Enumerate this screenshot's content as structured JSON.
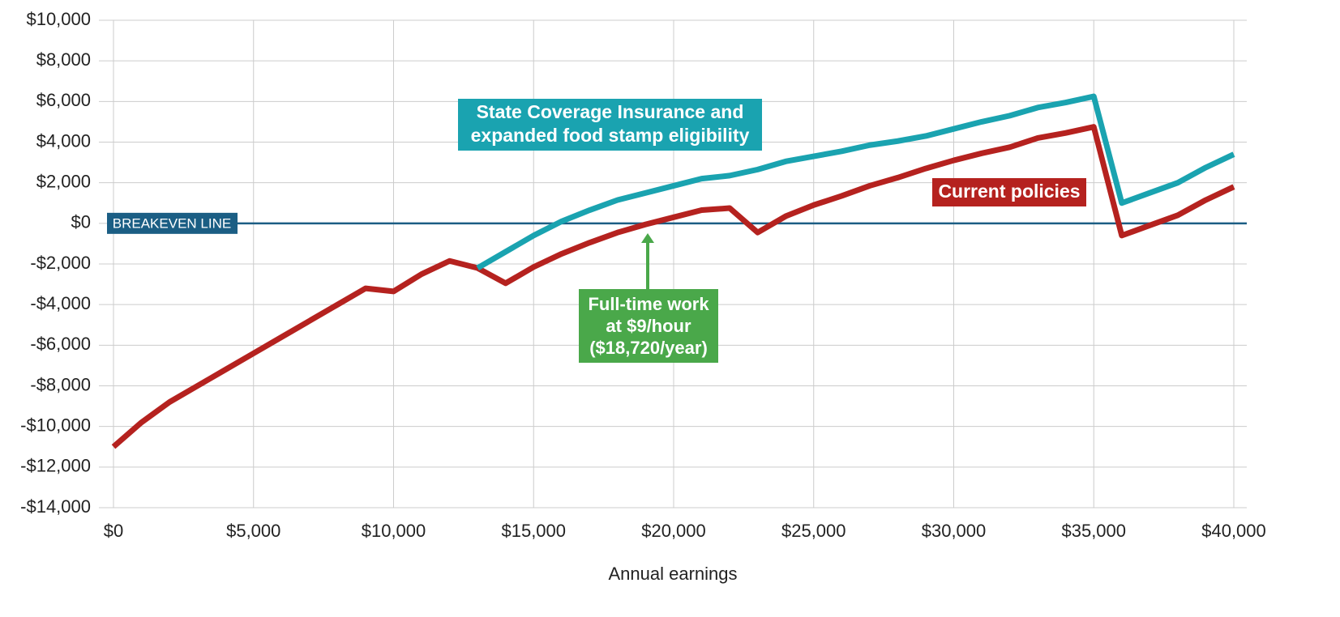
{
  "chart_data": {
    "type": "line",
    "x_label": "Annual earnings",
    "x": [
      0,
      1000,
      2000,
      3000,
      4000,
      5000,
      6000,
      7000,
      8000,
      9000,
      10000,
      11000,
      12000,
      13000,
      14000,
      15000,
      16000,
      17000,
      18000,
      19000,
      20000,
      21000,
      22000,
      23000,
      24000,
      25000,
      26000,
      27000,
      28000,
      29000,
      30000,
      31000,
      32000,
      33000,
      34000,
      35000,
      36000,
      37000,
      38000,
      39000,
      40000
    ],
    "series": [
      {
        "name": "Current policies",
        "color": "#b5221f",
        "values": [
          -11000,
          -9800,
          -8800,
          -8000,
          -7200,
          -6400,
          -5600,
          -4800,
          -4000,
          -3200,
          -3350,
          -2500,
          -1850,
          -2200,
          -2950,
          -2150,
          -1500,
          -950,
          -450,
          -50,
          300,
          650,
          750,
          -450,
          350,
          900,
          1350,
          1850,
          2250,
          2700,
          3100,
          3450,
          3750,
          4200,
          4450,
          4750,
          -600,
          -100,
          400,
          1150,
          1800
        ]
      },
      {
        "name": "State Coverage Insurance and expanded food stamp eligibility",
        "color": "#1aa3b0",
        "values": [
          null,
          null,
          null,
          null,
          null,
          null,
          null,
          null,
          null,
          null,
          null,
          null,
          null,
          -2200,
          -1400,
          -600,
          100,
          650,
          1150,
          1500,
          1850,
          2200,
          2350,
          2650,
          3050,
          3300,
          3550,
          3850,
          4050,
          4300,
          4650,
          5000,
          5300,
          5700,
          5950,
          6250,
          1000,
          1500,
          2000,
          2750,
          3400
        ]
      }
    ],
    "series_label_lines": [
      [
        "Current policies"
      ],
      [
        "State Coverage Insurance and",
        "expanded food stamp eligibility"
      ]
    ],
    "breakeven": {
      "label": "BREAKEVEN LINE",
      "value": 0,
      "color": "#1b5e84"
    },
    "callout": {
      "lines": [
        "Full-time work",
        "at $9/hour",
        "($18,720/year)"
      ],
      "color": "#4aa84a"
    },
    "xlim": [
      0,
      40000
    ],
    "ylim": [
      -14000,
      10000
    ],
    "xticks": [
      {
        "value": 0,
        "label": "$0"
      },
      {
        "value": 5000,
        "label": "$5,000"
      },
      {
        "value": 10000,
        "label": "$10,000"
      },
      {
        "value": 15000,
        "label": "$15,000"
      },
      {
        "value": 20000,
        "label": "$20,000"
      },
      {
        "value": 25000,
        "label": "$25,000"
      },
      {
        "value": 30000,
        "label": "$30,000"
      },
      {
        "value": 35000,
        "label": "$35,000"
      },
      {
        "value": 40000,
        "label": "$40,000"
      }
    ],
    "yticks": [
      {
        "value": -14000,
        "label": "-$14,000"
      },
      {
        "value": -12000,
        "label": "-$12,000"
      },
      {
        "value": -10000,
        "label": "-$10,000"
      },
      {
        "value": -8000,
        "label": "-$8,000"
      },
      {
        "value": -6000,
        "label": "-$6,000"
      },
      {
        "value": -4000,
        "label": "-$4,000"
      },
      {
        "value": -2000,
        "label": "-$2,000"
      },
      {
        "value": 0,
        "label": "$0"
      },
      {
        "value": 2000,
        "label": "$2,000"
      },
      {
        "value": 4000,
        "label": "$4,000"
      },
      {
        "value": 6000,
        "label": "$6,000"
      },
      {
        "value": 8000,
        "label": "$8,000"
      },
      {
        "value": 10000,
        "label": "$10,000"
      }
    ],
    "grid": true
  }
}
